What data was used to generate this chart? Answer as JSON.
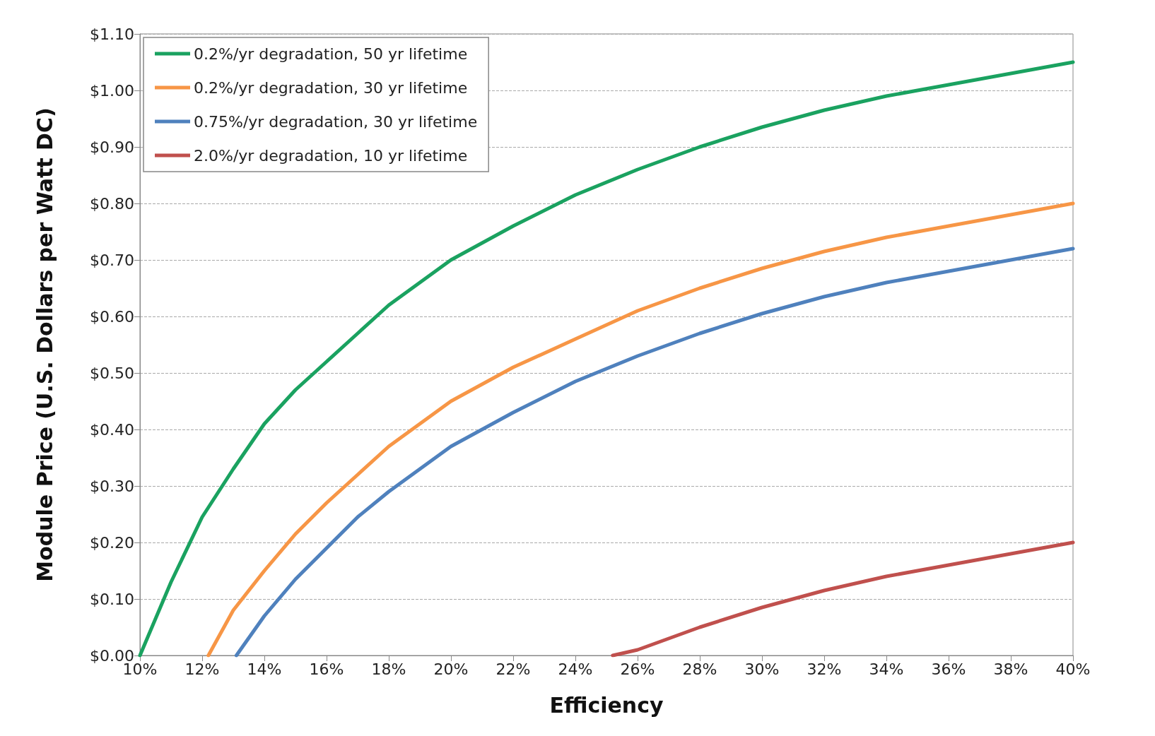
{
  "chart_data": {
    "type": "line",
    "xlabel": "Efficiency",
    "ylabel": "Module Price (U.S. Dollars per Watt DC)",
    "xlim": [
      10,
      40
    ],
    "ylim": [
      0,
      1.1
    ],
    "xticks": [
      {
        "value": 10,
        "label": "10%"
      },
      {
        "value": 12,
        "label": "12%"
      },
      {
        "value": 14,
        "label": "14%"
      },
      {
        "value": 16,
        "label": "16%"
      },
      {
        "value": 18,
        "label": "18%"
      },
      {
        "value": 20,
        "label": "20%"
      },
      {
        "value": 22,
        "label": "22%"
      },
      {
        "value": 24,
        "label": "24%"
      },
      {
        "value": 26,
        "label": "26%"
      },
      {
        "value": 28,
        "label": "28%"
      },
      {
        "value": 30,
        "label": "30%"
      },
      {
        "value": 32,
        "label": "32%"
      },
      {
        "value": 34,
        "label": "34%"
      },
      {
        "value": 36,
        "label": "36%"
      },
      {
        "value": 38,
        "label": "38%"
      },
      {
        "value": 40,
        "label": "40%"
      }
    ],
    "yticks": [
      {
        "value": 0,
        "label": "$0.00"
      },
      {
        "value": 0.1,
        "label": "$0.10"
      },
      {
        "value": 0.2,
        "label": "$0.20"
      },
      {
        "value": 0.3,
        "label": "$0.30"
      },
      {
        "value": 0.4,
        "label": "$0.40"
      },
      {
        "value": 0.5,
        "label": "$0.50"
      },
      {
        "value": 0.6,
        "label": "$0.60"
      },
      {
        "value": 0.7,
        "label": "$0.70"
      },
      {
        "value": 0.8,
        "label": "$0.80"
      },
      {
        "value": 0.9,
        "label": "$0.90"
      },
      {
        "value": 1.0,
        "label": "$1.00"
      },
      {
        "value": 1.1,
        "label": "$1.10"
      }
    ],
    "grid": "y",
    "legend": "top left",
    "marker": "none",
    "line_style": "solid",
    "series": [
      {
        "name": "0.2%/yr degradation, 50 yr lifetime",
        "color": "#1aa260",
        "x": [
          10,
          11,
          12,
          13,
          14,
          15,
          16,
          17,
          18,
          19,
          20,
          22,
          24,
          26,
          28,
          30,
          32,
          34,
          36,
          38,
          40
        ],
        "values": [
          0,
          0.13,
          0.245,
          0.33,
          0.41,
          0.47,
          0.52,
          0.57,
          0.62,
          0.66,
          0.7,
          0.76,
          0.815,
          0.86,
          0.9,
          0.935,
          0.965,
          0.99,
          1.01,
          1.03,
          1.05
        ]
      },
      {
        "name": "0.2%/yr degradation, 30 yr lifetime",
        "color": "#f79646",
        "x": [
          12.2,
          13,
          14,
          15,
          16,
          17,
          18,
          19,
          20,
          22,
          24,
          26,
          28,
          30,
          32,
          34,
          36,
          38,
          40
        ],
        "values": [
          0,
          0.08,
          0.15,
          0.215,
          0.27,
          0.32,
          0.37,
          0.41,
          0.45,
          0.51,
          0.56,
          0.61,
          0.65,
          0.685,
          0.715,
          0.74,
          0.76,
          0.78,
          0.8
        ]
      },
      {
        "name": "0.75%/yr degradation, 30 yr lifetime",
        "color": "#4f81bd",
        "x": [
          13.1,
          14,
          15,
          16,
          17,
          18,
          19,
          20,
          22,
          24,
          26,
          28,
          30,
          32,
          34,
          36,
          38,
          40
        ],
        "values": [
          0,
          0.07,
          0.135,
          0.19,
          0.245,
          0.29,
          0.33,
          0.37,
          0.43,
          0.485,
          0.53,
          0.57,
          0.605,
          0.635,
          0.66,
          0.68,
          0.7,
          0.72
        ]
      },
      {
        "name": "2.0%/yr degradation, 10 yr lifetime",
        "color": "#c0504d",
        "x": [
          25.2,
          26,
          28,
          30,
          32,
          34,
          36,
          38,
          40
        ],
        "values": [
          0,
          0.01,
          0.05,
          0.085,
          0.115,
          0.14,
          0.16,
          0.18,
          0.2
        ]
      }
    ]
  }
}
